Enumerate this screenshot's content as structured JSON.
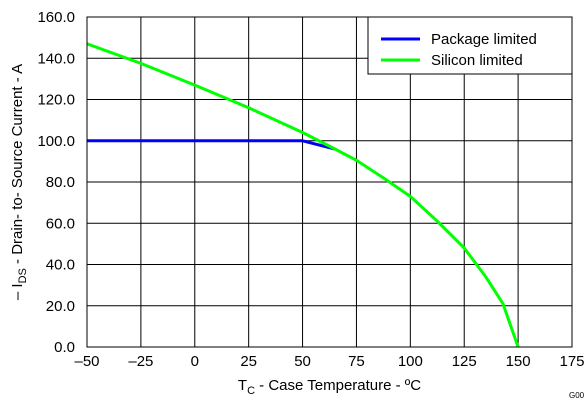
{
  "figure_id": "G00",
  "colors": {
    "package": "#0000ff",
    "silicon": "#00ff00",
    "grid": "#000000",
    "background": "#ffffff"
  },
  "chart_data": {
    "type": "line",
    "title": "",
    "xlabel_main": "T",
    "xlabel_sub": "C",
    "xlabel_rest": " - Case Temperature - ºC",
    "ylabel_main": "– I",
    "ylabel_sub": "DS",
    "ylabel_rest": " - Drain- to- Source Current - A",
    "xlim": [
      -50,
      175
    ],
    "ylim": [
      0,
      160
    ],
    "x_ticks": [
      -50,
      -25,
      0,
      25,
      50,
      75,
      100,
      125,
      150,
      175
    ],
    "x_tick_labels": [
      "–50",
      "–25",
      "0",
      "25",
      "50",
      "75",
      "100",
      "125",
      "150",
      "175"
    ],
    "y_ticks": [
      0,
      20,
      40,
      60,
      80,
      100,
      120,
      140,
      160
    ],
    "y_tick_labels": [
      "0.0",
      "20.0",
      "40.0",
      "60.0",
      "80.0",
      "100.0",
      "120.0",
      "140.0",
      "160.0"
    ],
    "grid": true,
    "legend_position": "top-right",
    "series": [
      {
        "name": "Package limited",
        "color": "#0000ff",
        "x": [
          -50,
          50,
          65
        ],
        "y": [
          100,
          100,
          96
        ]
      },
      {
        "name": "Silicon limited",
        "color": "#00ff00",
        "x": [
          -50,
          -25,
          0,
          25,
          50,
          65,
          75,
          87.5,
          100,
          112.5,
          125,
          135,
          143,
          150
        ],
        "y": [
          147,
          137.5,
          127,
          116,
          104,
          96,
          90.5,
          82,
          73,
          61,
          48,
          34,
          21,
          0
        ]
      }
    ]
  }
}
